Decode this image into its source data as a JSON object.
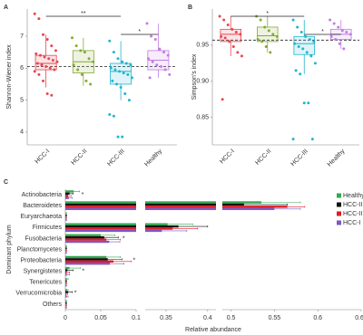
{
  "chart_data": [
    {
      "type": "box",
      "panel": "A",
      "y_label": "Shannon-Wiener index",
      "categories": [
        "HCC-I",
        "HCC-II",
        "HCC-III",
        "Healthy"
      ],
      "colors": [
        "#e8474f",
        "#86ab34",
        "#22b5cf",
        "#c17de3"
      ],
      "ylim": [
        3.6,
        7.85
      ],
      "yticks": [
        4,
        5,
        6,
        7
      ],
      "reference_line": 6.05,
      "boxes": [
        {
          "whisker_low": 5.4,
          "q1": 5.95,
          "median": 6.15,
          "q3": 6.4,
          "whisker_high": 7.05
        },
        {
          "whisker_low": 5.45,
          "q1": 5.85,
          "median": 6.2,
          "q3": 6.55,
          "whisker_high": 6.95
        },
        {
          "whisker_low": 5.0,
          "q1": 5.5,
          "median": 5.9,
          "q3": 6.15,
          "whisker_high": 6.85
        },
        {
          "whisker_low": 5.7,
          "q1": 5.95,
          "median": 6.25,
          "q3": 6.55,
          "whisker_high": 7.4
        }
      ],
      "points": [
        [
          7.7,
          7.55,
          7.05,
          6.9,
          6.7,
          6.55,
          6.45,
          6.4,
          6.35,
          6.3,
          6.25,
          6.2,
          6.15,
          6.1,
          6.05,
          6.0,
          5.95,
          5.9,
          5.8,
          5.6,
          5.2,
          5.15
        ],
        [
          6.95,
          6.7,
          6.55,
          6.5,
          6.3,
          6.2,
          6.1,
          5.95,
          5.8,
          5.6,
          5.5
        ],
        [
          6.85,
          6.5,
          6.3,
          6.2,
          6.15,
          6.1,
          6.0,
          5.95,
          5.9,
          5.85,
          5.8,
          5.7,
          5.6,
          5.5,
          5.4,
          5.2,
          5.0,
          4.55,
          4.5,
          3.85,
          3.85
        ],
        [
          7.4,
          7.0,
          6.9,
          6.6,
          6.5,
          6.4,
          6.3,
          6.2,
          6.1,
          6.05,
          5.95,
          5.8,
          5.7
        ]
      ],
      "comparisons": [
        {
          "from": "HCC-I",
          "to": "HCC-III",
          "label": "**"
        },
        {
          "from": "HCC-III",
          "to": "Healthy",
          "label": "*"
        }
      ]
    },
    {
      "type": "box",
      "panel": "B",
      "y_label": "Simpson's index",
      "categories": [
        "HCC-I",
        "HCC-II",
        "HCC-III",
        "Healthy"
      ],
      "colors": [
        "#e8474f",
        "#86ab34",
        "#22b5cf",
        "#c17de3"
      ],
      "ylim": [
        0.812,
        1.0
      ],
      "yticks": [
        0.85,
        {
          "value": 0.9,
          "label": "0.90"
        },
        0.95
      ],
      "reference_line": 0.957,
      "boxes": [
        {
          "whisker_low": 0.935,
          "q1": 0.955,
          "median": 0.965,
          "q3": 0.972,
          "whisker_high": 0.99
        },
        {
          "whisker_low": 0.94,
          "q1": 0.955,
          "median": 0.963,
          "q3": 0.975,
          "whisker_high": 0.99
        },
        {
          "whisker_low": 0.91,
          "q1": 0.937,
          "median": 0.952,
          "q3": 0.962,
          "whisker_high": 0.985
        },
        {
          "whisker_low": 0.945,
          "q1": 0.958,
          "median": 0.965,
          "q3": 0.972,
          "whisker_high": 0.985
        }
      ],
      "points": [
        [
          0.99,
          0.985,
          0.978,
          0.972,
          0.968,
          0.965,
          0.962,
          0.96,
          0.955,
          0.948,
          0.94,
          0.935,
          0.875
        ],
        [
          0.99,
          0.985,
          0.975,
          0.97,
          0.965,
          0.962,
          0.958,
          0.955,
          0.948,
          0.94
        ],
        [
          0.985,
          0.975,
          0.968,
          0.962,
          0.958,
          0.955,
          0.952,
          0.948,
          0.945,
          0.94,
          0.935,
          0.925,
          0.915,
          0.91,
          0.87,
          0.87,
          0.82,
          0.82
        ],
        [
          0.985,
          0.98,
          0.975,
          0.97,
          0.968,
          0.965,
          0.962,
          0.958,
          0.952,
          0.945
        ]
      ],
      "comparisons": [
        {
          "from": "HCC-I",
          "to": "HCC-III",
          "label": "*"
        },
        {
          "from": "HCC-III",
          "to": "Healthy",
          "label": "*"
        }
      ]
    },
    {
      "type": "barh",
      "panel": "C",
      "x_label": "Relative abundance",
      "y_label": "Dominant phylum",
      "categories": [
        "Actinobacteria",
        "Bacteroidetes",
        "Euryarchaeota",
        "Firmicutes",
        "Fusobacteria",
        "Planctomycetes",
        "Proteobacteria",
        "Synergistetes",
        "Tenericutes",
        "Verrucomicrobia",
        "Others"
      ],
      "xlim_segments": [
        [
          0,
          0.1
        ],
        [
          0.325,
          0.41
        ],
        [
          0.49,
          0.65
        ]
      ],
      "xticks": [
        0,
        0.05,
        0.1,
        0.35,
        0.4,
        0.5,
        0.55,
        0.6,
        0.65
      ],
      "series": [
        {
          "name": "Healthy",
          "color": "#33a852",
          "values": [
            0.012,
            0.535,
            0.001,
            0.352,
            0.05,
            0.001,
            0.058,
            0.006,
            0.002,
            0.002,
            0.001
          ],
          "errors": [
            0.008,
            0.045,
            0.001,
            0.03,
            0.02,
            0.001,
            0.02,
            0.015,
            0.002,
            0.002,
            0.001
          ]
        },
        {
          "name": "HCC-III",
          "color": "#111111",
          "values": [
            0.006,
            0.515,
            0.001,
            0.365,
            0.055,
            0.001,
            0.06,
            0.003,
            0.001,
            0.004,
            0.001
          ],
          "errors": [
            0.005,
            0.05,
            0.001,
            0.035,
            0.02,
            0.001,
            0.02,
            0.008,
            0.001,
            0.006,
            0.001
          ]
        },
        {
          "name": "HCC-II",
          "color": "#e01b24",
          "values": [
            0.004,
            0.565,
            0.001,
            0.358,
            0.058,
            0.001,
            0.068,
            0.002,
            0.001,
            0.001,
            0.001
          ],
          "errors": [
            0.004,
            0.02,
            0.001,
            0.03,
            0.02,
            0.001,
            0.025,
            0.004,
            0.001,
            0.002,
            0.001
          ]
        },
        {
          "name": "HCC-I",
          "color": "#7e57c2",
          "values": [
            0.005,
            0.55,
            0.001,
            0.345,
            0.062,
            0.001,
            0.063,
            0.002,
            0.001,
            0.002,
            0.001
          ],
          "errors": [
            0.005,
            0.03,
            0.001,
            0.03,
            0.015,
            0.001,
            0.02,
            0.004,
            0.001,
            0.002,
            0.001
          ]
        }
      ],
      "significance": [
        "*",
        null,
        null,
        null,
        "*",
        null,
        "*",
        "*",
        null,
        "*",
        null
      ]
    }
  ]
}
